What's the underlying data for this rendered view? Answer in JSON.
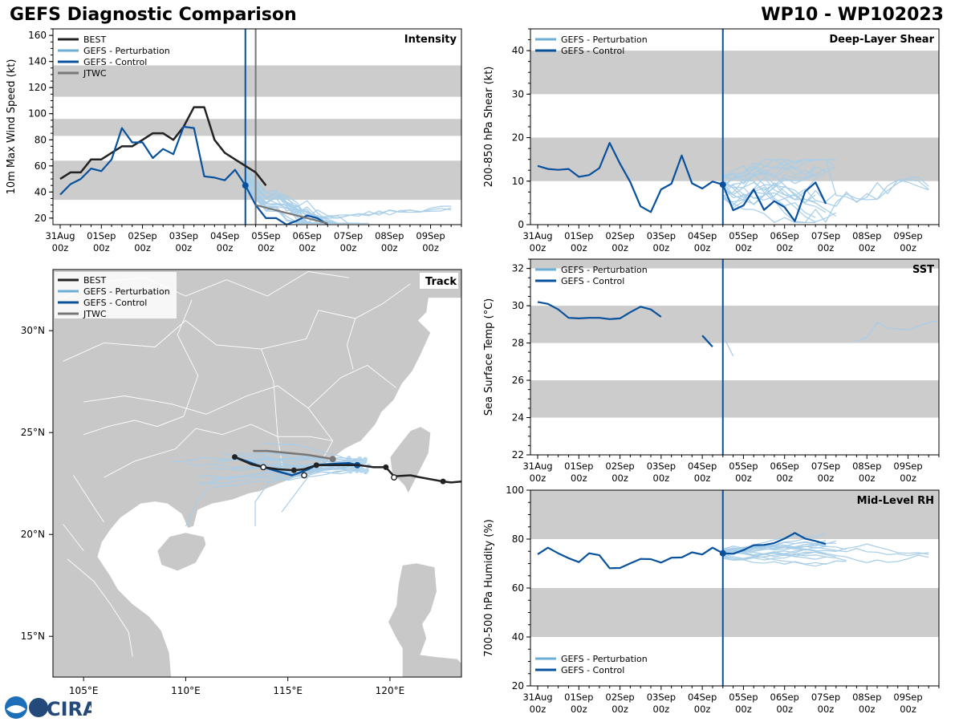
{
  "header": {
    "title": "GEFS Diagnostic Comparison",
    "storm": "WP10 - WP102023"
  },
  "colors": {
    "best": "#222222",
    "pert": "#6baed6",
    "pert_light": "#a8cde8",
    "control": "#08519c",
    "jtwc": "#777777",
    "band": "#cccccc",
    "land": "#c8c8c8"
  },
  "time_axis": {
    "labels": [
      "31Aug",
      "01Sep",
      "02Sep",
      "03Sep",
      "04Sep",
      "05Sep",
      "06Sep",
      "07Sep",
      "08Sep",
      "09Sep"
    ],
    "sub": "00z",
    "range": [
      0,
      9.75
    ],
    "init_day": 4.5
  },
  "chart_data": [
    {
      "id": "intensity",
      "type": "line",
      "title": "Intensity",
      "ylabel": "10m Max Wind Speed (kt)",
      "ylim": [
        15,
        165
      ],
      "yticks": [
        20,
        40,
        60,
        80,
        100,
        120,
        140,
        160
      ],
      "bands": [
        [
          34,
          64
        ],
        [
          83,
          96
        ],
        [
          113,
          137
        ]
      ],
      "legend": [
        "BEST",
        "GEFS - Perturbation",
        "GEFS - Control",
        "JTWC"
      ],
      "vlines": [
        {
          "x": 4.5,
          "color": "control"
        },
        {
          "x": 4.75,
          "color": "jtwc"
        }
      ],
      "series": [
        {
          "name": "BEST",
          "color": "best",
          "width": 2.5,
          "x": [
            0,
            0.25,
            0.5,
            0.75,
            1,
            1.25,
            1.5,
            1.75,
            2,
            2.25,
            2.5,
            2.75,
            3,
            3.25,
            3.5,
            3.75,
            4,
            4.25,
            4.5,
            4.75,
            5
          ],
          "y": [
            50,
            55,
            55,
            65,
            65,
            70,
            75,
            75,
            80,
            85,
            85,
            80,
            90,
            105,
            105,
            80,
            70,
            65,
            60,
            55,
            45
          ]
        },
        {
          "name": "GEFS - Control",
          "color": "control",
          "width": 2.2,
          "x": [
            0,
            0.25,
            0.5,
            0.75,
            1,
            1.25,
            1.5,
            1.75,
            2,
            2.25,
            2.5,
            2.75,
            3,
            3.25,
            3.5,
            3.75,
            4,
            4.25,
            4.5,
            4.75,
            5,
            5.25,
            5.5,
            5.75,
            6,
            6.25,
            6.5
          ],
          "y": [
            38,
            46,
            50,
            58,
            56,
            65,
            89,
            78,
            78,
            66,
            73,
            69,
            90,
            89,
            52,
            51,
            49,
            57,
            45,
            30,
            20,
            20,
            15,
            18,
            22,
            20,
            15
          ]
        },
        {
          "name": "JTWC",
          "color": "jtwc",
          "width": 2.2,
          "x": [
            4.75,
            5,
            5.5,
            6,
            6.5
          ],
          "y": [
            30,
            28,
            24,
            20,
            16
          ]
        }
      ],
      "pert_y0": 45,
      "pert_mode": "intensity",
      "marker": {
        "x": 4.5,
        "y": 45
      }
    },
    {
      "id": "shear",
      "type": "line",
      "title": "Deep-Layer Shear",
      "ylabel": "200-850 hPa Shear (kt)",
      "ylim": [
        0,
        45
      ],
      "yticks": [
        0,
        10,
        20,
        30,
        40
      ],
      "bands": [
        [
          10,
          20
        ],
        [
          30,
          40
        ]
      ],
      "legend": [
        "GEFS - Perturbation",
        "GEFS - Control"
      ],
      "vlines": [
        {
          "x": 4.5,
          "color": "control"
        }
      ],
      "series": [
        {
          "name": "GEFS - Control",
          "color": "control",
          "width": 2.2,
          "x": [
            0,
            0.25,
            0.5,
            0.75,
            1,
            1.25,
            1.5,
            1.75,
            2,
            2.25,
            2.5,
            2.75,
            3,
            3.25,
            3.5,
            3.75,
            4,
            4.25,
            4.5,
            4.75,
            5,
            5.25,
            5.5,
            5.75,
            6,
            6.25,
            6.5,
            6.75,
            7,
            7.25
          ],
          "y": [
            13.5,
            12.8,
            12.6,
            12.8,
            11,
            11.4,
            13,
            18.8,
            14,
            9.8,
            4.2,
            2.9,
            8.1,
            9.4,
            15.9,
            9.5,
            8.3,
            9.9,
            9.2,
            3.3,
            4.4,
            8.1,
            3.4,
            5.4,
            4.0,
            0.8,
            7.6,
            9.7,
            4.8,
            null
          ]
        }
      ],
      "pert_y0": 9,
      "pert_mode": "shear",
      "marker": {
        "x": 4.5,
        "y": 9.2
      }
    },
    {
      "id": "sst",
      "type": "line",
      "title": "SST",
      "ylabel": "Sea Surface Temp (°C)",
      "ylim": [
        22,
        32.5
      ],
      "yticks": [
        22,
        24,
        26,
        28,
        30,
        32
      ],
      "bands": [
        [
          24,
          26
        ],
        [
          28,
          30
        ],
        [
          32,
          33
        ]
      ],
      "legend": [
        "GEFS - Perturbation",
        "GEFS - Control"
      ],
      "vlines": [
        {
          "x": 4.5,
          "color": "control"
        }
      ],
      "series": [
        {
          "name": "GEFS - Control",
          "color": "control",
          "width": 2.2,
          "x": [
            0,
            0.25,
            0.5,
            0.75,
            1,
            1.25,
            1.5,
            1.75,
            2,
            2.25,
            2.5,
            2.75,
            3
          ],
          "y": [
            30.2,
            30.1,
            29.8,
            29.35,
            29.32,
            29.35,
            29.35,
            29.28,
            29.32,
            29.65,
            29.95,
            29.8,
            29.4
          ]
        },
        {
          "name": "GEFS - Control",
          "color": "control",
          "width": 2.2,
          "x": [
            4.0,
            4.25
          ],
          "y": [
            28.4,
            27.8
          ]
        }
      ],
      "pert_mode": "sst"
    },
    {
      "id": "rh",
      "type": "line",
      "title": "Mid-Level RH",
      "ylabel": "700-500 hPa Humidity (%)",
      "ylim": [
        20,
        100
      ],
      "yticks": [
        20,
        40,
        60,
        80,
        100
      ],
      "bands": [
        [
          40,
          60
        ],
        [
          80,
          100
        ]
      ],
      "legend": [
        "GEFS - Perturbation",
        "GEFS - Control"
      ],
      "legend_pos": "bottom-left",
      "vlines": [
        {
          "x": 4.5,
          "color": "control"
        }
      ],
      "series": [
        {
          "name": "GEFS - Control",
          "color": "control",
          "width": 2.2,
          "x": [
            0,
            0.25,
            0.5,
            0.75,
            1,
            1.25,
            1.5,
            1.75,
            2,
            2.25,
            2.5,
            2.75,
            3,
            3.25,
            3.5,
            3.75,
            4,
            4.25,
            4.5,
            4.75,
            5,
            5.25,
            5.5,
            5.75,
            6,
            6.25,
            6.5,
            6.75,
            7
          ],
          "y": [
            73.8,
            76.5,
            74.2,
            72.2,
            70.6,
            74.2,
            73.4,
            68.1,
            68.2,
            70.1,
            71.9,
            71.8,
            70.4,
            72.4,
            72.5,
            74.6,
            73.7,
            76.5,
            74.2,
            74,
            75.5,
            77.5,
            77.6,
            78.4,
            80.2,
            82.5,
            80.2,
            79.2,
            78
          ]
        }
      ],
      "pert_y0": 74,
      "pert_mode": "rh",
      "marker": {
        "x": 4.5,
        "y": 74.2
      }
    },
    {
      "id": "track",
      "type": "line",
      "title": "Track",
      "lon_range": [
        103.5,
        123.5
      ],
      "lat_range": [
        13,
        33
      ],
      "lon_ticks": [
        105,
        110,
        115,
        120
      ],
      "lat_ticks": [
        15,
        20,
        25,
        30
      ],
      "lon_labels": [
        "105°E",
        "110°E",
        "115°E",
        "120°E"
      ],
      "lat_labels": [
        "15°N",
        "20°N",
        "25°N",
        "30°N"
      ],
      "legend": [
        "BEST",
        "GEFS - Perturbation",
        "GEFS - Control",
        "JTWC"
      ],
      "best": {
        "lon": [
          123.5,
          123,
          122.6,
          121.5,
          121,
          120.2,
          119.8,
          119.2,
          118.5,
          117,
          116.4,
          115.8,
          115.3,
          114.5,
          113.8,
          113.2,
          112.4
        ],
        "lat": [
          22.6,
          22.55,
          22.6,
          22.8,
          22.9,
          22.85,
          23.3,
          23.3,
          23.4,
          23.4,
          23.4,
          23.2,
          23.15,
          23.2,
          23.3,
          23.45,
          23.8
        ],
        "filled": [
          [
            122.6,
            22.6
          ],
          [
            119.8,
            23.3
          ],
          [
            116.4,
            23.4
          ],
          [
            115.3,
            23.15
          ],
          [
            112.4,
            23.8
          ]
        ],
        "open": [
          [
            120.2,
            22.8
          ],
          [
            115.8,
            22.9
          ],
          [
            113.8,
            23.3
          ]
        ]
      },
      "control": {
        "lon": [
          118.4,
          118,
          117,
          116.4,
          116,
          115.5,
          115.2,
          114.5,
          113.5,
          112.4
        ],
        "lat": [
          23.4,
          23.5,
          23.45,
          23.4,
          23.2,
          23.0,
          22.9,
          23.1,
          23.4,
          23.8
        ]
      },
      "jtwc": {
        "lon": [
          117.2,
          116,
          115,
          114,
          113.3
        ],
        "lat": [
          23.7,
          23.9,
          24.0,
          24.1,
          24.1
        ]
      }
    }
  ]
}
